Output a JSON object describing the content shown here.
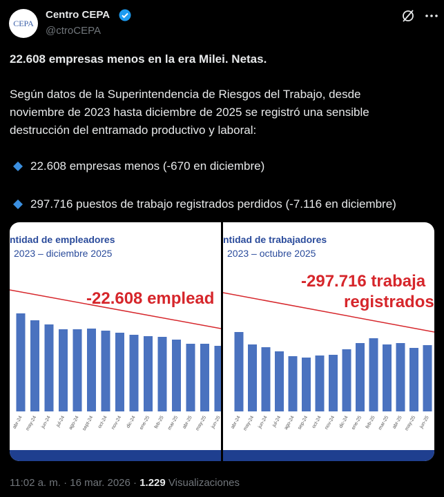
{
  "author": {
    "avatar_text": "CEPA",
    "name": "Centro CEPA",
    "handle": "@ctroCEPA"
  },
  "post": {
    "headline": "22.608 empresas menos en la era Milei. Netas.",
    "paragraph": [
      "Según datos de la Superintendencia de Riesgos del Trabajo, desde",
      "noviembre de 2023 hasta diciembre de 2025 se registró una sensible",
      "destrucción del entramado productivo y laboral:"
    ],
    "bullets": [
      "22.608 empresas menos (-670 en diciembre)",
      "297.716 puestos de trabajo registrados perdidos (-7.116 en diciembre)"
    ]
  },
  "media": [
    {
      "title": "ntidad de empleadores",
      "subtitle": "2023 – diciembre 2025",
      "annotation": [
        "-22.608 emplead"
      ],
      "months": [
        "abr-24",
        "may-24",
        "jun-24",
        "jul-24",
        "ago-24",
        "sept-24",
        "oct-24",
        "nov-24",
        "dic-24",
        "ene-25",
        "feb-25",
        "mar-25",
        "abr-25",
        "may-25",
        "jun-25"
      ],
      "bars": [
        142,
        132,
        126,
        119,
        119,
        120,
        117,
        114,
        111,
        109,
        108,
        104,
        98,
        98,
        95
      ]
    },
    {
      "title": "ntidad de trabajadores",
      "subtitle": "2023 – octubre 2025",
      "annotation": [
        "-297.716 trabaja",
        "registrados"
      ],
      "months": [
        "abr-24",
        "may-24",
        "jun-24",
        "jul-24",
        "ago-24",
        "sep-24",
        "oct-24",
        "nov-24",
        "dic-24",
        "ene-25",
        "feb-25",
        "mar-25",
        "abr-25",
        "may-25",
        "jun-25"
      ],
      "bars": [
        115,
        97,
        93,
        87,
        80,
        78,
        81,
        82,
        90,
        99,
        106,
        97,
        99,
        92,
        96
      ]
    }
  ],
  "footer": {
    "time": "11:02 a. m.",
    "separator": "·",
    "date": "16 mar. 2026",
    "views": "1.229",
    "views_label": "Visualizaciones"
  }
}
